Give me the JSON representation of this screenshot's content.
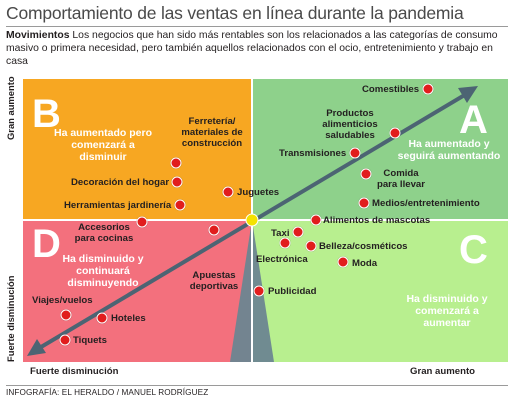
{
  "header": {
    "title": "Comportamiento de las ventas en línea durante la pandemia",
    "intro_bold": "Movimientos",
    "intro_text": " Los negocios que han sido más rentables son los relacionados a las categorías de consumo masivo o primera necesidad, pero también aquellos relacionados con el ocio, entretenimiento y trabajo en casa"
  },
  "axes": {
    "y_top": "Gran aumento",
    "y_bottom": "Fuerte disminución",
    "x_left": "Fuerte disminución",
    "x_right": "Gran aumento"
  },
  "quadrants": {
    "B": {
      "letter": "B",
      "text": "Ha aumentado pero comenzará a disminuir",
      "color": "#f7a722"
    },
    "A": {
      "letter": "A",
      "text": "Ha aumentado y seguirá aumentando",
      "color": "#8ed18b"
    },
    "D": {
      "letter": "D",
      "text": "Ha disminuido y continuará disminuyendo",
      "color": "#f3707d"
    },
    "C": {
      "letter": "C",
      "text": "Ha disminuido y comenzará a aumentar",
      "color": "#b8ef8f"
    }
  },
  "items": {
    "comestibles": "Comestibles",
    "productos": "Productos alimenticios saludables",
    "transmisiones": "Transmisiones",
    "comida": "Comida para llevar",
    "medios": "Medios/entretenimiento",
    "alimentos_mascotas": "Alimentos de mascotas",
    "taxi": "Taxi",
    "electronica": "Electrónica",
    "belleza": "Belleza/cosméticos",
    "moda": "Moda",
    "publicidad": "Publicidad",
    "ferreteria": "Ferretería/ materiales de construcción",
    "decoracion": "Decoración del hogar",
    "herramientas": "Herramientas jardinería",
    "juguetes": "Juguetes",
    "accesorios": "Accesorios para cocinas",
    "apuestas": "Apuestas deportivas",
    "viajes": "Viajes/vuelos",
    "hoteles": "Hoteles",
    "tiquets": "Tiquets"
  },
  "colors": {
    "dot": "#e11d1d",
    "arrow": "#4c6473",
    "center_dot": "#f4e200",
    "triangle": "#6b8591"
  },
  "footer": {
    "credit": "INFOGRAFÍA: EL HERALDO / MANUEL RODRÍGUEZ"
  }
}
